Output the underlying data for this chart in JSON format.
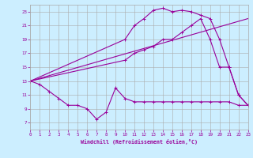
{
  "xlabel": "Windchill (Refroidissement éolien,°C)",
  "background_color": "#cceeff",
  "line_color": "#990099",
  "grid_color": "#aaaaaa",
  "xlim": [
    0,
    23
  ],
  "ylim": [
    6,
    24
  ],
  "xticks": [
    0,
    1,
    2,
    3,
    4,
    5,
    6,
    7,
    8,
    9,
    10,
    11,
    12,
    13,
    14,
    15,
    16,
    17,
    18,
    19,
    20,
    21,
    22,
    23
  ],
  "yticks": [
    7,
    9,
    11,
    13,
    15,
    17,
    19,
    21,
    23
  ],
  "line1_x": [
    0,
    1,
    2,
    3,
    4,
    5,
    6,
    7,
    8,
    9,
    10,
    11,
    12,
    13,
    14,
    15,
    16,
    17,
    18,
    19,
    20,
    21,
    22,
    23
  ],
  "line1_y": [
    13,
    12.5,
    11.5,
    10.5,
    9.5,
    9.5,
    9,
    7.5,
    8.5,
    12,
    10.5,
    10,
    10,
    10,
    10,
    10,
    10,
    10,
    10,
    10,
    10,
    10,
    9.5,
    9.5
  ],
  "line2_x": [
    0,
    10,
    11,
    12,
    13,
    14,
    15,
    16,
    17,
    18,
    19,
    20,
    21,
    22,
    23
  ],
  "line2_y": [
    13,
    19,
    21,
    22,
    23.2,
    23.5,
    23,
    23.2,
    23,
    22.5,
    22,
    19,
    15,
    11,
    9.5
  ],
  "line3_x": [
    0,
    23
  ],
  "line3_y": [
    13,
    22
  ],
  "line4_x": [
    0,
    10,
    11,
    12,
    13,
    14,
    15,
    16,
    17,
    18,
    19,
    20,
    21,
    22,
    23
  ],
  "line4_y": [
    13,
    16,
    17,
    17.5,
    18,
    19,
    19,
    20,
    21,
    22,
    19,
    15,
    15,
    11,
    9.5
  ]
}
